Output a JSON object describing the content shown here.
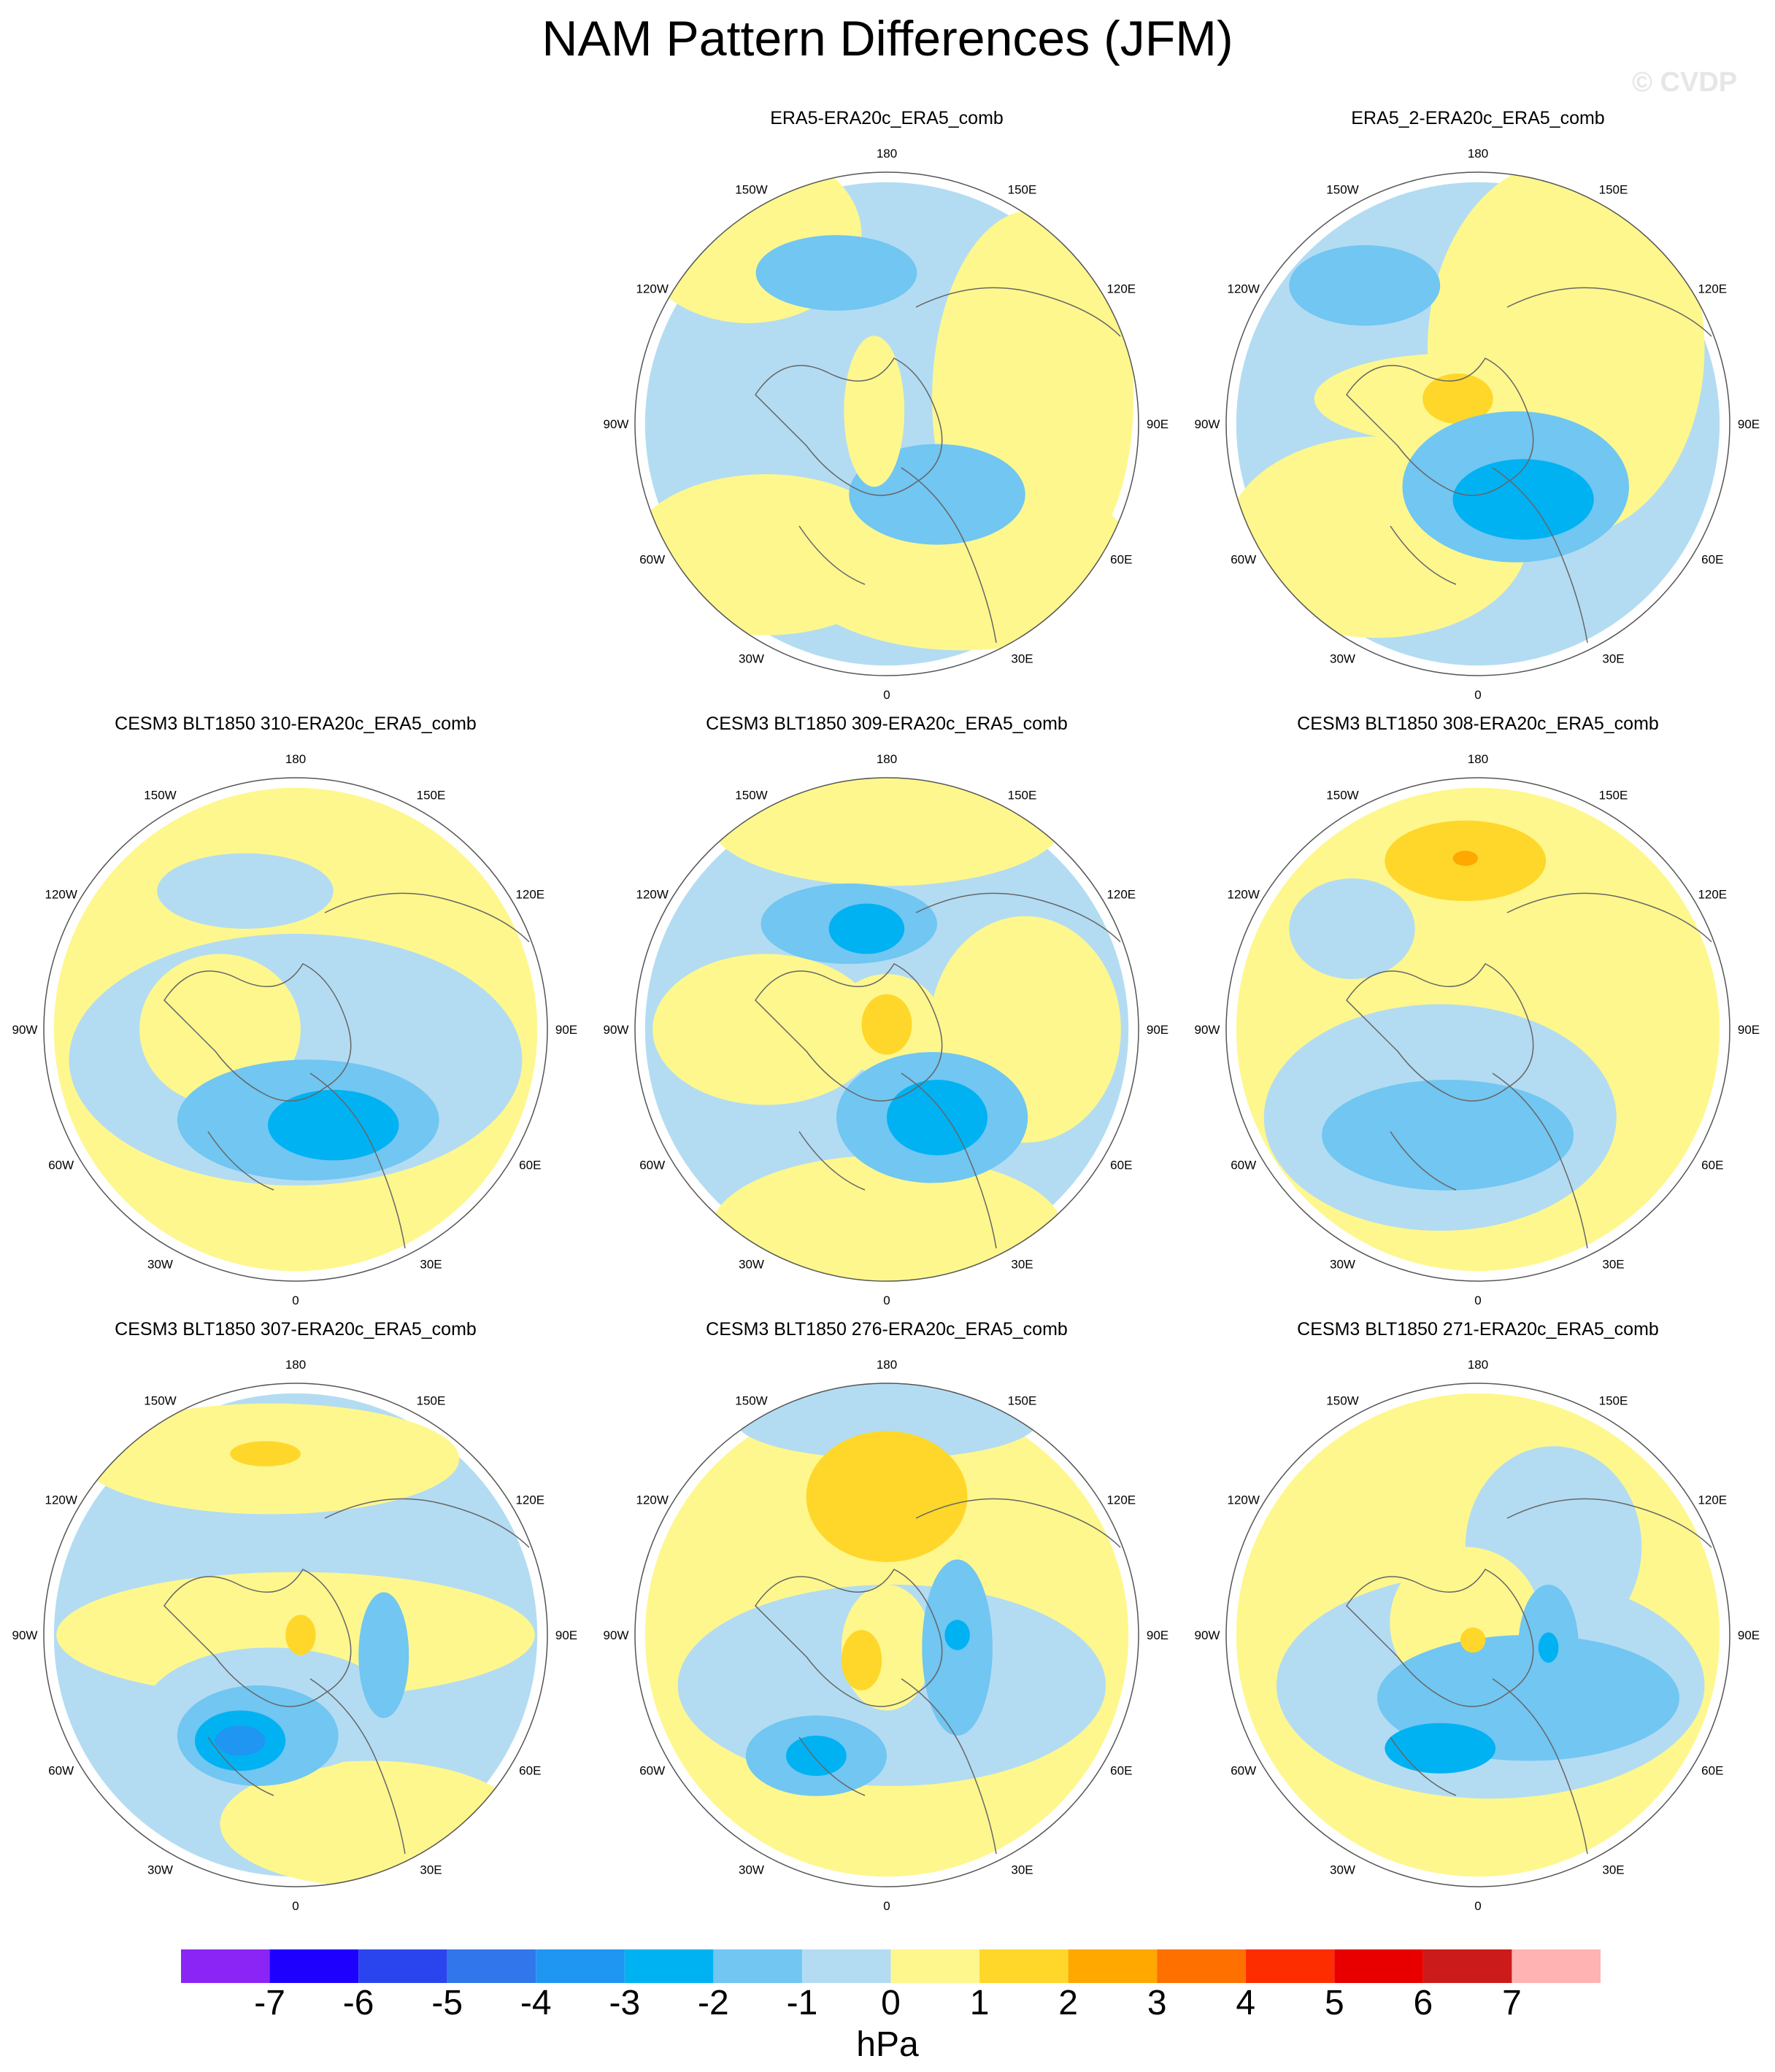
{
  "title": "NAM Pattern Differences (JFM)",
  "watermark": "© CVDP",
  "colors": {
    "neg1": "#b3dcf2",
    "neg2": "#71c6f2",
    "neg3": "#00b2f2",
    "neg4": "#1e96f2",
    "pos1": "#fef78e",
    "pos2": "#fed72a",
    "pos3": "#fea800",
    "land": "#666666"
  },
  "lon_labels": [
    "180",
    "150E",
    "120E",
    "90E",
    "60E",
    "30E",
    "0",
    "30W",
    "60W",
    "90W",
    "120W",
    "150W"
  ],
  "panels": [
    {
      "title": "ERA5-ERA20c_ERA5_comb",
      "blobs": [
        [
          "neg1",
          0,
          0,
          0.96,
          0.96
        ],
        [
          "pos1",
          -0.48,
          0.52,
          0.55,
          0.32
        ],
        [
          "pos1",
          0.58,
          -0.1,
          0.4,
          0.75
        ],
        [
          "pos1",
          0.3,
          0.55,
          0.7,
          0.35
        ],
        [
          "pos1",
          -0.55,
          -0.75,
          0.45,
          0.35
        ],
        [
          "neg2",
          -0.2,
          -0.6,
          0.32,
          0.15
        ],
        [
          "neg2",
          0.2,
          0.28,
          0.35,
          0.2
        ],
        [
          "pos1",
          -0.05,
          -0.05,
          0.12,
          0.3
        ]
      ]
    },
    {
      "title": "ERA5_2-ERA20c_ERA5_comb",
      "blobs": [
        [
          "neg1",
          0,
          0,
          0.96,
          0.96
        ],
        [
          "pos1",
          0.35,
          -0.3,
          0.55,
          0.75
        ],
        [
          "pos1",
          -0.4,
          0.45,
          0.6,
          0.4
        ],
        [
          "pos1",
          -0.1,
          -0.1,
          0.55,
          0.18
        ],
        [
          "pos2",
          -0.08,
          -0.1,
          0.14,
          0.1
        ],
        [
          "neg2",
          -0.45,
          -0.55,
          0.3,
          0.16
        ],
        [
          "neg2",
          0.15,
          0.25,
          0.45,
          0.3
        ],
        [
          "neg3",
          0.18,
          0.3,
          0.28,
          0.16
        ]
      ]
    },
    {
      "title": "CESM3 BLT1850 310-ERA20c_ERA5_comb",
      "blobs": [
        [
          "pos1",
          0,
          0,
          0.96,
          0.96
        ],
        [
          "neg1",
          0,
          0.12,
          0.9,
          0.5
        ],
        [
          "pos1",
          -0.3,
          0.0,
          0.32,
          0.3
        ],
        [
          "neg2",
          0.05,
          0.36,
          0.52,
          0.24
        ],
        [
          "neg3",
          0.15,
          0.38,
          0.26,
          0.14
        ],
        [
          "neg1",
          -0.2,
          -0.55,
          0.35,
          0.15
        ]
      ]
    },
    {
      "title": "CESM3 BLT1850 309-ERA20c_ERA5_comb",
      "blobs": [
        [
          "neg1",
          0,
          0,
          0.96,
          0.96
        ],
        [
          "pos1",
          -0.48,
          0.0,
          0.45,
          0.3
        ],
        [
          "pos1",
          0.55,
          0.0,
          0.38,
          0.45
        ],
        [
          "pos1",
          0,
          -0.82,
          0.7,
          0.25
        ],
        [
          "pos1",
          0,
          0.8,
          0.7,
          0.3
        ],
        [
          "neg2",
          -0.15,
          -0.42,
          0.35,
          0.16
        ],
        [
          "neg3",
          -0.08,
          -0.4,
          0.15,
          0.1
        ],
        [
          "pos1",
          0,
          -0.02,
          0.22,
          0.2
        ],
        [
          "pos2",
          0,
          -0.02,
          0.1,
          0.12
        ],
        [
          "neg2",
          0.18,
          0.35,
          0.38,
          0.26
        ],
        [
          "neg3",
          0.2,
          0.35,
          0.2,
          0.15
        ]
      ]
    },
    {
      "title": "CESM3 BLT1850 308-ERA20c_ERA5_comb",
      "blobs": [
        [
          "pos1",
          0,
          0,
          0.96,
          0.96
        ],
        [
          "neg1",
          -0.15,
          0.35,
          0.7,
          0.45
        ],
        [
          "neg1",
          -0.5,
          -0.4,
          0.25,
          0.2
        ],
        [
          "neg2",
          -0.12,
          0.42,
          0.5,
          0.22
        ],
        [
          "pos2",
          -0.05,
          -0.67,
          0.32,
          0.16
        ],
        [
          "pos3",
          -0.05,
          -0.68,
          0.05,
          0.03
        ]
      ]
    },
    {
      "title": "CESM3 BLT1850 307-ERA20c_ERA5_comb",
      "blobs": [
        [
          "neg1",
          0,
          0,
          0.96,
          0.96
        ],
        [
          "pos1",
          -0.1,
          -0.7,
          0.75,
          0.22
        ],
        [
          "pos1",
          0,
          0.0,
          0.95,
          0.25
        ],
        [
          "pos1",
          0.3,
          0.75,
          0.6,
          0.25
        ],
        [
          "neg1",
          -0.1,
          0.3,
          0.5,
          0.25
        ],
        [
          "neg2",
          -0.15,
          0.4,
          0.32,
          0.2
        ],
        [
          "neg3",
          -0.22,
          0.42,
          0.18,
          0.12
        ],
        [
          "neg4",
          -0.22,
          0.42,
          0.1,
          0.06
        ],
        [
          "pos2",
          -0.12,
          -0.72,
          0.14,
          0.05
        ],
        [
          "pos2",
          0.02,
          0.0,
          0.06,
          0.08
        ],
        [
          "neg2",
          0.35,
          0.08,
          0.1,
          0.25
        ]
      ]
    },
    {
      "title": "CESM3 BLT1850 276-ERA20c_ERA5_comb",
      "blobs": [
        [
          "pos1",
          0,
          0,
          0.96,
          0.96
        ],
        [
          "neg1",
          0.02,
          0.2,
          0.85,
          0.4
        ],
        [
          "neg1",
          0,
          -0.85,
          0.6,
          0.15
        ],
        [
          "pos1",
          0,
          0.05,
          0.18,
          0.25
        ],
        [
          "neg2",
          0.28,
          0.05,
          0.14,
          0.35
        ],
        [
          "neg3",
          0.28,
          0.0,
          0.05,
          0.06
        ],
        [
          "neg2",
          -0.28,
          0.48,
          0.28,
          0.16
        ],
        [
          "neg3",
          -0.28,
          0.48,
          0.12,
          0.08
        ],
        [
          "pos2",
          0,
          -0.55,
          0.32,
          0.26
        ],
        [
          "pos2",
          -0.1,
          0.1,
          0.08,
          0.12
        ]
      ]
    },
    {
      "title": "CESM3 BLT1850 271-ERA20c_ERA5_comb",
      "blobs": [
        [
          "pos1",
          0,
          0,
          0.96,
          0.96
        ],
        [
          "neg1",
          0.05,
          0.2,
          0.85,
          0.45
        ],
        [
          "neg1",
          0.3,
          -0.35,
          0.35,
          0.4
        ],
        [
          "pos1",
          -0.05,
          -0.05,
          0.3,
          0.3
        ],
        [
          "neg2",
          0.2,
          0.25,
          0.6,
          0.25
        ],
        [
          "neg3",
          -0.15,
          0.45,
          0.22,
          0.1
        ],
        [
          "neg2",
          0.28,
          0.05,
          0.12,
          0.25
        ],
        [
          "neg3",
          0.28,
          0.05,
          0.04,
          0.06
        ],
        [
          "pos2",
          -0.02,
          0.02,
          0.05,
          0.05
        ]
      ]
    }
  ],
  "colorbar": {
    "colors": [
      "#8a25f5",
      "#1e00fe",
      "#2b45ee",
      "#3276ec",
      "#1e96f2",
      "#00b2f2",
      "#71c6f2",
      "#b3dcf2",
      "#fef78e",
      "#fed72a",
      "#fea800",
      "#fe7000",
      "#fe2d00",
      "#e80000",
      "#cc1b1b",
      "#ffb3b3"
    ],
    "labels": [
      "-7",
      "-6",
      "-5",
      "-4",
      "-3",
      "-2",
      "-1",
      "0",
      "1",
      "2",
      "3",
      "4",
      "5",
      "6",
      "7"
    ],
    "units": "hPa"
  }
}
